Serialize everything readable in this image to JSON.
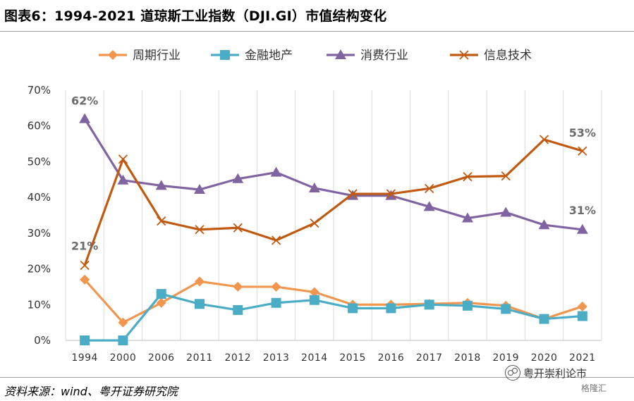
{
  "header": {
    "title": "图表6：1994-2021 道琼斯工业指数（DJI.GI）市值结构变化"
  },
  "footer": {
    "source": "资料来源：wind、粤开证券研究院",
    "watermark": "粤开崇利论市",
    "watermark_sub": "格隆汇"
  },
  "chart_data": {
    "type": "line",
    "title": "",
    "xlabel": "",
    "ylabel": "",
    "ylim": [
      0,
      70
    ],
    "y_ticks": [
      "0%",
      "10%",
      "20%",
      "30%",
      "40%",
      "50%",
      "60%",
      "70%"
    ],
    "grid": "vertical",
    "legend_position": "top",
    "categories": [
      "1994",
      "2000",
      "2006",
      "2011",
      "2012",
      "2013",
      "2014",
      "2015",
      "2016",
      "2017",
      "2018",
      "2019",
      "2020",
      "2021"
    ],
    "series": [
      {
        "name": "周期行业",
        "marker": "diamond",
        "color": "#F0964E",
        "values": [
          17,
          5,
          10.5,
          16.5,
          15,
          15,
          13.5,
          10,
          10,
          10.2,
          10.5,
          9.7,
          6,
          9.5
        ]
      },
      {
        "name": "金融地产",
        "marker": "square",
        "color": "#4BACC6",
        "values": [
          0,
          0,
          13,
          10.2,
          8.5,
          10.5,
          11.3,
          9,
          9,
          10,
          9.7,
          8.8,
          6,
          6.8
        ]
      },
      {
        "name": "消费行业",
        "marker": "triangle",
        "color": "#8064A2",
        "values": [
          62,
          44.8,
          43.3,
          42.2,
          45.2,
          47,
          42.6,
          40.5,
          40.5,
          37.4,
          34.2,
          35.8,
          32.3,
          31
        ]
      },
      {
        "name": "信息技术",
        "marker": "x",
        "color": "#C05A10",
        "values": [
          21,
          50.7,
          33.4,
          31,
          31.5,
          28,
          32.8,
          41,
          41,
          42.5,
          45.8,
          46,
          56.2,
          53
        ]
      }
    ],
    "annotations": [
      {
        "text": "62%",
        "series": "消费行业",
        "category": "1994"
      },
      {
        "text": "21%",
        "series": "信息技术",
        "category": "1994"
      },
      {
        "text": "53%",
        "series": "信息技术",
        "category": "2021"
      },
      {
        "text": "31%",
        "series": "消费行业",
        "category": "2021"
      }
    ]
  }
}
